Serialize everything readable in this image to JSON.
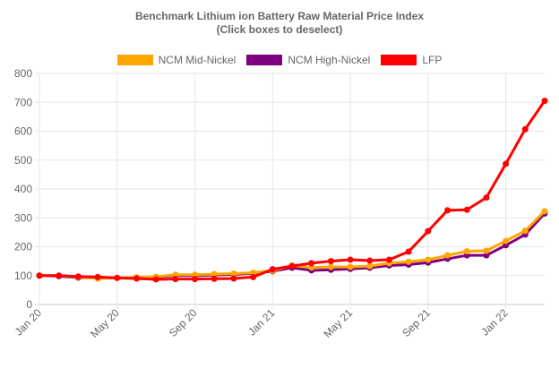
{
  "chart_data": {
    "type": "line",
    "title": "Benchmark Lithium ion Battery Raw Material Price Index",
    "subtitle": "(Click boxes to deselect)",
    "xlabel": "",
    "ylabel": "",
    "ylim": [
      0,
      800
    ],
    "yticks": [
      "0",
      "100",
      "200",
      "300",
      "400",
      "500",
      "600",
      "700",
      "800"
    ],
    "xticks": [
      "Jan 20",
      "May 20",
      "Sep 20",
      "Jan 21",
      "May 21",
      "Sep 21",
      "Jan 22"
    ],
    "grid": true,
    "legend": "top",
    "x": [
      "Jan 20",
      "Feb 20",
      "Mar 20",
      "Apr 20",
      "May 20",
      "Jun 20",
      "Jul 20",
      "Aug 20",
      "Sep 20",
      "Oct 20",
      "Nov 20",
      "Dec 20",
      "Jan 21",
      "Feb 21",
      "Mar 21",
      "Apr 21",
      "May 21",
      "Jun 21",
      "Jul 21",
      "Aug 21",
      "Sep 21",
      "Oct 21",
      "Nov 21",
      "Dec 21",
      "Jan 22",
      "Feb 22",
      "Mar 22"
    ],
    "series": [
      {
        "name": "NCM Mid-Nickel",
        "color": "#FFA500",
        "values": [
          100,
          100,
          95,
          90,
          92,
          94,
          96,
          103,
          103,
          105,
          107,
          110,
          117,
          135,
          128,
          130,
          130,
          133,
          143,
          148,
          155,
          170,
          184,
          186,
          220,
          255,
          323
        ]
      },
      {
        "name": "NCM High-Nickel",
        "color": "#800080",
        "values": [
          100,
          98,
          93,
          92,
          92,
          93,
          95,
          100,
          100,
          102,
          104,
          108,
          115,
          127,
          118,
          120,
          123,
          127,
          135,
          138,
          145,
          158,
          170,
          170,
          205,
          242,
          315
        ]
      },
      {
        "name": "LFP",
        "color": "#FF0000",
        "values": [
          100,
          100,
          97,
          95,
          92,
          90,
          87,
          88,
          88,
          89,
          90,
          95,
          122,
          133,
          143,
          150,
          155,
          152,
          155,
          183,
          254,
          326,
          328,
          370,
          487,
          607,
          705
        ]
      }
    ]
  }
}
